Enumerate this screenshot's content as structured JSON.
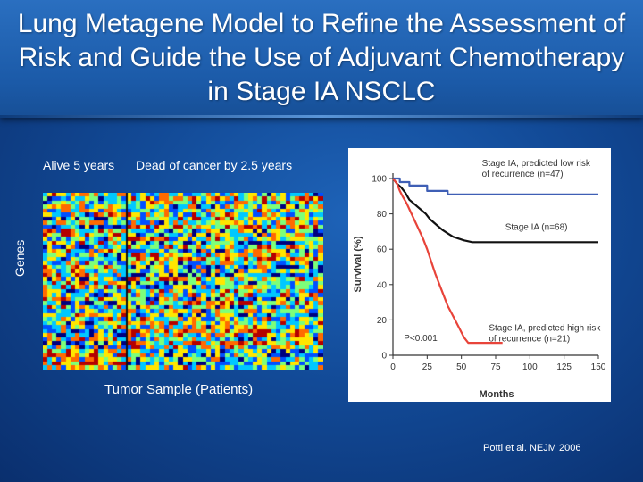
{
  "slide": {
    "title": "Lung Metagene Model to Refine the Assessment of Risk and Guide the Use of Adjuvant Chemotherapy in Stage IA NSCLC",
    "citation": "Potti et al.  NEJM 2006"
  },
  "heatmap": {
    "group_left": "Alive 5 years",
    "group_right": "Dead of cancer by 2.5 years",
    "y_label": "Genes",
    "x_label": "Tumor Sample (Patients)",
    "colormap": [
      "#00007f",
      "#0050ff",
      "#00c8ff",
      "#7dff7a",
      "#ffe600",
      "#ff6a00",
      "#b40000"
    ]
  },
  "chart_data": {
    "type": "line",
    "title": "",
    "xlabel": "Months",
    "ylabel": "Survival (%)",
    "xlim": [
      0,
      150
    ],
    "ylim": [
      0,
      100
    ],
    "x_ticks": [
      0,
      25,
      50,
      75,
      100,
      125,
      150
    ],
    "y_ticks": [
      0,
      20,
      40,
      60,
      80,
      100
    ],
    "p_value": "P<0.001",
    "series": [
      {
        "name": "Stage IA, predicted low risk of recurrence (n=47)",
        "label_lines": [
          "Stage IA, predicted low risk",
          "of recurrence (n=47)"
        ],
        "label_pos": [
          65,
          107
        ],
        "color": "#3f5fb5",
        "points": [
          [
            0,
            100
          ],
          [
            5,
            100
          ],
          [
            5,
            98
          ],
          [
            12,
            98
          ],
          [
            12,
            96
          ],
          [
            25,
            96
          ],
          [
            25,
            93
          ],
          [
            40,
            93
          ],
          [
            40,
            91
          ],
          [
            60,
            91
          ],
          [
            60,
            91
          ],
          [
            150,
            91
          ]
        ]
      },
      {
        "name": "Stage IA (n=68)",
        "label_lines": [
          "Stage IA (n=68)"
        ],
        "label_pos": [
          82,
          71
        ],
        "color": "#111111",
        "points": [
          [
            0,
            100
          ],
          [
            3,
            97
          ],
          [
            6,
            95
          ],
          [
            9,
            92
          ],
          [
            12,
            88
          ],
          [
            15,
            86
          ],
          [
            18,
            84
          ],
          [
            21,
            82
          ],
          [
            24,
            80
          ],
          [
            27,
            77
          ],
          [
            30,
            75
          ],
          [
            33,
            73
          ],
          [
            36,
            71
          ],
          [
            40,
            69
          ],
          [
            44,
            67
          ],
          [
            48,
            66
          ],
          [
            52,
            65
          ],
          [
            58,
            64
          ],
          [
            65,
            64
          ],
          [
            75,
            64
          ],
          [
            75,
            64
          ],
          [
            100,
            64
          ],
          [
            125,
            64
          ],
          [
            150,
            64
          ]
        ]
      },
      {
        "name": "Stage IA, predicted high risk of recurrence (n=21)",
        "label_lines": [
          "Stage IA, predicted high risk",
          "of recurrence (n=21)"
        ],
        "label_pos": [
          70,
          14
        ],
        "color": "#e8443a",
        "points": [
          [
            0,
            100
          ],
          [
            3,
            97
          ],
          [
            5,
            93
          ],
          [
            7,
            90
          ],
          [
            10,
            86
          ],
          [
            13,
            81
          ],
          [
            16,
            76
          ],
          [
            19,
            71
          ],
          [
            22,
            66
          ],
          [
            25,
            60
          ],
          [
            28,
            53
          ],
          [
            31,
            46
          ],
          [
            34,
            40
          ],
          [
            37,
            34
          ],
          [
            40,
            28
          ],
          [
            44,
            22
          ],
          [
            48,
            16
          ],
          [
            52,
            10
          ],
          [
            55,
            7
          ],
          [
            57,
            7
          ],
          [
            65,
            7
          ],
          [
            75,
            7
          ],
          [
            80,
            7
          ],
          [
            80,
            7
          ]
        ]
      }
    ]
  }
}
